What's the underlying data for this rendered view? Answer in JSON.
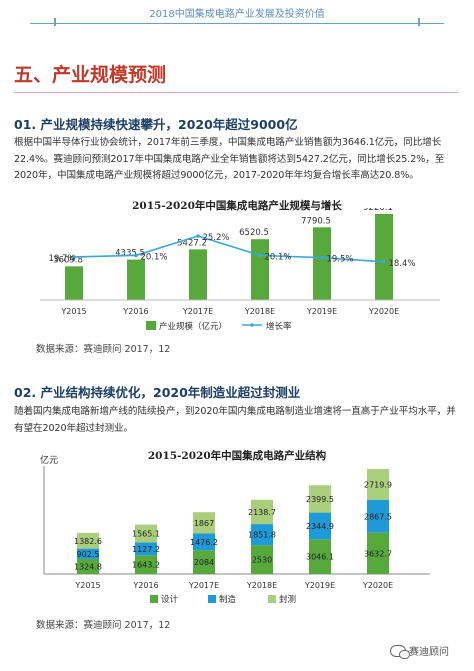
{
  "header": {
    "title": "2018中国集成电路产业发展及投资价值"
  },
  "section": {
    "title": "五、产业规模预测"
  },
  "part1": {
    "title": "01. 产业规模持续快速攀升，2020年超过9000亿",
    "paragraph": "根据中国半导体行业协会统计，2017年前三季度，中国集成电路产业销售额为3646.1亿元，同比增长22.4%。赛迪顾问预测2017年中国集成电路产业全年销售额将达到5427.2亿元，同比增长25.2%，至2020年，中国集成电路产业规模将超过9000亿元，2017-2020年年均复合增长率高达20.8%。",
    "source": "数据来源：赛迪顾问 2017，12"
  },
  "part2": {
    "title": "02. 产业结构持续优化，2020年制造业超过封测业",
    "paragraph": "随着国内集成电路新增产线的陆续投产，到2020年国内集成电路制造业增速将一直高于产业平均水平，并有望在2020年超过封测业。",
    "source": "数据来源：赛迪顾问 2017，12"
  },
  "colors": {
    "green": "#57a93b",
    "blue": "#1f9ad9",
    "lightgreen": "#a9cf7c",
    "line": "#3aa7d8"
  },
  "footer": {
    "logo_text": "赛迪顾问",
    "logo_icon": "wechat-icon"
  },
  "chart_data": [
    {
      "type": "bar",
      "title": "2015-2020年中国集成电路产业规模与增长",
      "categories": [
        "Y2015",
        "Y2016",
        "Y2017E",
        "Y2018E",
        "Y2019E",
        "Y2020E"
      ],
      "series": [
        {
          "name": "产业规模（亿元）",
          "type": "bar",
          "values": [
            3609.8,
            4335.5,
            5427.2,
            6520.5,
            7790.5,
            9220.1
          ]
        },
        {
          "name": "增长率",
          "type": "line",
          "values": [
            19.7,
            20.1,
            25.2,
            20.1,
            19.5,
            18.4
          ],
          "unit": "%"
        }
      ],
      "legend": "bottom"
    },
    {
      "type": "bar",
      "stacked": true,
      "title": "2015-2020年中国集成电路产业结构",
      "ylabel": "亿元",
      "categories": [
        "Y2015",
        "Y2016",
        "Y2017E",
        "Y2018E",
        "Y2019E",
        "Y2020E"
      ],
      "series": [
        {
          "name": "设计",
          "values": [
            1324.8,
            1643.2,
            2084.0,
            2530.0,
            3046.1,
            3632.7
          ]
        },
        {
          "name": "制造",
          "values": [
            902.5,
            1127.2,
            1476.2,
            1851.8,
            2344.9,
            2867.5
          ]
        },
        {
          "name": "封测",
          "values": [
            1382.6,
            1565.1,
            1867.0,
            2138.7,
            2399.5,
            2719.9
          ]
        }
      ],
      "legend": "bottom"
    }
  ]
}
